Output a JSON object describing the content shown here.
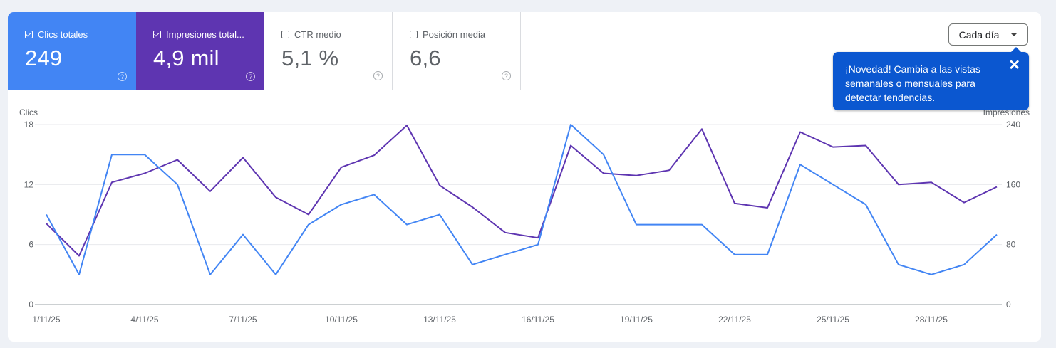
{
  "metrics": [
    {
      "label": "Clics totales",
      "value": "249",
      "checked": true,
      "color": "#4285f4"
    },
    {
      "label": "Impresiones total...",
      "value": "4,9 mil",
      "checked": true,
      "color": "#5e35b1"
    },
    {
      "label": "CTR medio",
      "value": "5,1 %",
      "checked": false
    },
    {
      "label": "Posición media",
      "value": "6,6",
      "checked": false
    }
  ],
  "help_icon": "?",
  "dropdown": {
    "label": "Cada día"
  },
  "tooltip": {
    "text": "¡Novedad! Cambia a las vistas semanales o mensuales para detectar tendencias.",
    "close_icon": "✕"
  },
  "chart_data": {
    "type": "line",
    "title": "",
    "x": [
      "1/11/25",
      "2/11/25",
      "3/11/25",
      "4/11/25",
      "5/11/25",
      "6/11/25",
      "7/11/25",
      "8/11/25",
      "9/11/25",
      "10/11/25",
      "11/11/25",
      "12/11/25",
      "13/11/25",
      "14/11/25",
      "15/11/25",
      "16/11/25",
      "17/11/25",
      "18/11/25",
      "19/11/25",
      "20/11/25",
      "21/11/25",
      "22/11/25",
      "23/11/25",
      "24/11/25",
      "25/11/25",
      "26/11/25",
      "27/11/25",
      "28/11/25",
      "29/11/25",
      "30/11/25"
    ],
    "x_tick_labels": [
      "1/11/25",
      "4/11/25",
      "7/11/25",
      "10/11/25",
      "13/11/25",
      "16/11/25",
      "19/11/25",
      "22/11/25",
      "25/11/25",
      "28/11/25"
    ],
    "series": [
      {
        "name": "Clics",
        "axis": "left",
        "color": "#4285f4",
        "values": [
          9,
          3,
          15,
          15,
          12,
          3,
          7,
          3,
          8,
          10,
          11,
          8,
          9,
          4,
          5,
          6,
          18,
          15,
          8,
          8,
          8,
          5,
          5,
          14,
          12,
          10,
          4,
          3,
          4,
          7
        ]
      },
      {
        "name": "Impresiones",
        "axis": "right",
        "color": "#5e35b1",
        "values": [
          108,
          65,
          163,
          175,
          193,
          151,
          196,
          143,
          120,
          183,
          199,
          239,
          159,
          130,
          96,
          89,
          212,
          175,
          172,
          179,
          234,
          135,
          129,
          230,
          210,
          212,
          160,
          163,
          136,
          157
        ]
      }
    ],
    "ylabel": "Clics",
    "ylabel_right": "Impresiones",
    "ylim": [
      0,
      18
    ],
    "ylim_right": [
      0,
      240
    ],
    "yticks": [
      0,
      6,
      12,
      18
    ],
    "yticks_right": [
      0,
      80,
      160,
      240
    ],
    "grid": true
  }
}
